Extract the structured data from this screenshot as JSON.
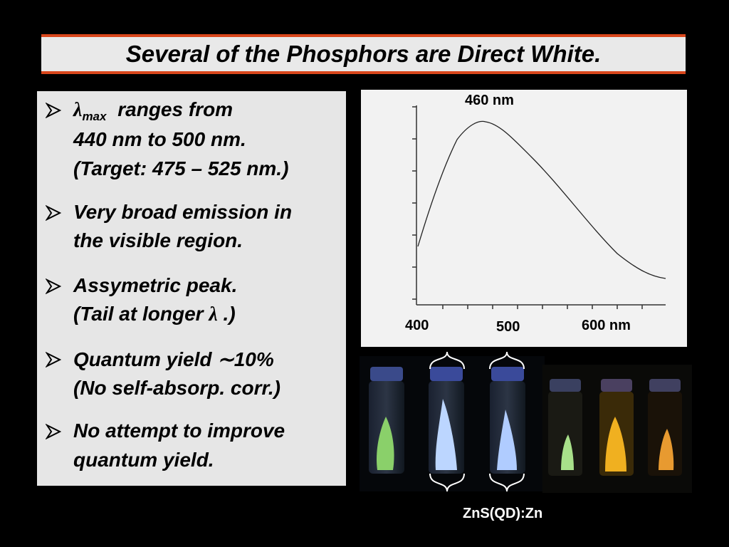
{
  "title": "Several of the Phosphors are Direct White.",
  "bullets": [
    {
      "lines": [
        [
          "λ",
          "max",
          "ranges from"
        ],
        [
          "440 nm to 500 nm."
        ],
        [
          "(Target: 475 – 525 nm.)"
        ]
      ]
    },
    {
      "lines": [
        [
          "Very broad emission in"
        ],
        [
          "the visible region."
        ]
      ]
    },
    {
      "lines": [
        [
          "Assymetric peak."
        ],
        [
          "(Tail at longer",
          "λ",
          ".)"
        ]
      ]
    },
    {
      "lines": [
        [
          "Quantum yield ∼10%"
        ],
        [
          "(No self-absorp. corr.)"
        ]
      ]
    },
    {
      "lines": [
        [
          "No attempt to improve"
        ],
        [
          "quantum yield."
        ]
      ]
    }
  ],
  "spectrum": {
    "peak_label": "460 nm",
    "x_labels": [
      "400",
      "500",
      "600 nm"
    ]
  },
  "photo_caption": "ZnS(QD):Zn"
}
